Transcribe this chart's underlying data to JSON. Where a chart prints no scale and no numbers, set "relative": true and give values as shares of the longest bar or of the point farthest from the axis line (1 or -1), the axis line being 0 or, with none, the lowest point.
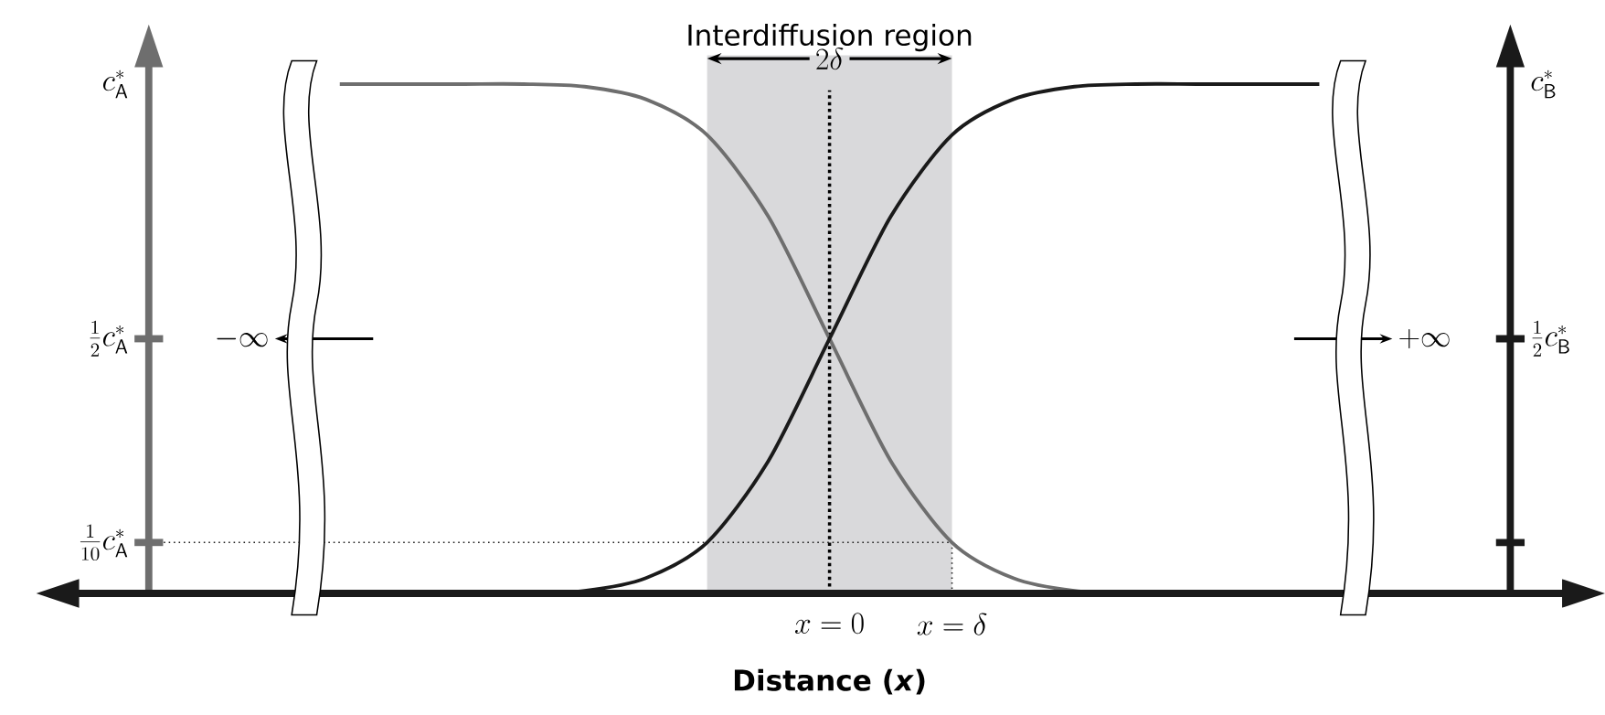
{
  "chart_data": {
    "type": "line",
    "relative": true,
    "xlabel": "Distance (*x*)",
    "categories": [
      null,
      null,
      null,
      null,
      null,
      null,
      null,
      null,
      null,
      null,
      null,
      null,
      null,
      null,
      null,
      null,
      null
    ],
    "series": [
      {
        "color": "#6e6e6e",
        "values": [
          1,
          1,
          1,
          1,
          0.995,
          0.97,
          0.9,
          0.74,
          0.5,
          0.26,
          0.1,
          0.03,
          0.005,
          0,
          0,
          0,
          0
        ]
      },
      {
        "color": "#1a1a1a",
        "values": [
          0,
          0,
          0,
          0,
          0.005,
          0.03,
          0.1,
          0.26,
          0.5,
          0.74,
          0.9,
          0.97,
          0.995,
          1,
          1,
          1,
          1
        ]
      }
    ],
    "ref_lines": [
      {
        "axis": "y",
        "value": 0.1,
        "line_style": "dotted",
        "color": "#1a1a1a"
      }
    ],
    "annotations": [
      "Interdiffusion region",
      "2\\delta",
      "-\\infty",
      "+\\infty",
      "x=0",
      "x=\\delta",
      "\\frac{1}{2}c_{\\mathsf{A}}^{*}",
      "\\frac{1}{10}c_{\\mathsf{A}}^{*}",
      "\\frac{1}{2}c_{\\mathsf{B}}^{*}",
      "c_{\\mathsf{A}}^{*}",
      "c_{\\mathsf{B}}^{*}"
    ],
    "marker": "none",
    "line_style": "solid"
  }
}
